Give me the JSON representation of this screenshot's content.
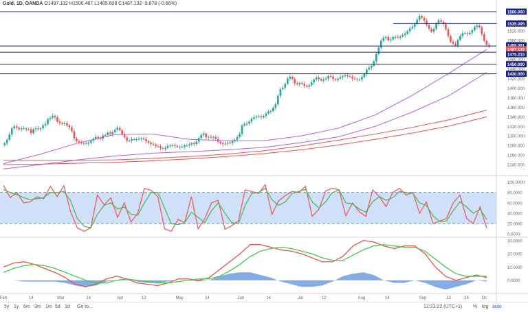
{
  "header": {
    "symbol": "Gold, 1D, OANDA",
    "open": "O1497.132",
    "high": "H1500.487",
    "low": "L1485.608",
    "close": "C1487.132",
    "change": "-9.878 (-0.66%)"
  },
  "colors": {
    "candle_up": "#26a69a",
    "candle_down": "#ef5350",
    "ma_purple": "#b05fe0",
    "ma_red": "#f04e4e",
    "hline": "#1a237e",
    "stoch_k": "#ef5350",
    "stoch_d": "#4caf50",
    "stoch_band": "#bcd3f5",
    "macd_hist": "#5b8fd9"
  },
  "toolbar": {
    "ranges": [
      "5y",
      "1y",
      "6m",
      "3m",
      "1m",
      "5d",
      "1d"
    ],
    "goto": "Go to...",
    "time": "12:23:22 (UTC+1)",
    "percent": "%",
    "log": "log",
    "auto": "auto"
  },
  "chart_data": [
    {
      "type": "candlestick",
      "title": "Gold, 1D, OANDA",
      "ylim": [
        1220,
        1570
      ],
      "y_ticks": [
        1240,
        1260,
        1280,
        1300,
        1320,
        1340,
        1360,
        1380,
        1400,
        1420,
        1440,
        1460,
        1480,
        1500,
        1520,
        1540
      ],
      "x_labels": [
        "Feb",
        "14",
        "Mar",
        "14",
        "Apr",
        "12",
        "May",
        "14",
        "Jun",
        "14",
        "Jul",
        "12",
        "Aug",
        "14",
        "Sep",
        "13",
        "26",
        "Oc"
      ],
      "x_label_days": [
        0,
        14,
        29,
        43,
        59,
        71,
        89,
        103,
        120,
        134,
        150,
        162,
        181,
        194,
        212,
        225,
        234,
        243
      ],
      "total_days": 246,
      "close": [
        1285,
        1292,
        1303,
        1316,
        1320,
        1317,
        1314,
        1316,
        1316,
        1314,
        1314,
        1306,
        1314,
        1316,
        1314,
        1316,
        1322,
        1325,
        1335,
        1338,
        1342,
        1339,
        1330,
        1327,
        1325,
        1327,
        1322,
        1318,
        1310,
        1295,
        1289,
        1287,
        1285,
        1285,
        1284,
        1286,
        1290,
        1294,
        1298,
        1296,
        1294,
        1301,
        1302,
        1307,
        1304,
        1308,
        1313,
        1317,
        1312,
        1304,
        1297,
        1290,
        1290,
        1293,
        1293,
        1293,
        1294,
        1295,
        1293,
        1289,
        1286,
        1283,
        1282,
        1279,
        1278,
        1274,
        1273,
        1275,
        1279,
        1280,
        1280,
        1279,
        1277,
        1277,
        1277,
        1280,
        1280,
        1282,
        1285,
        1283,
        1288,
        1296,
        1302,
        1305,
        1297,
        1298,
        1297,
        1298,
        1294,
        1288,
        1285,
        1283,
        1284,
        1286,
        1285,
        1289,
        1292,
        1298,
        1304,
        1322,
        1325,
        1326,
        1330,
        1336,
        1339,
        1341,
        1341,
        1339,
        1342,
        1347,
        1351,
        1352,
        1359,
        1366,
        1384,
        1398,
        1401,
        1409,
        1420,
        1424,
        1419,
        1410,
        1408,
        1411,
        1409,
        1405,
        1403,
        1406,
        1412,
        1418,
        1422,
        1419,
        1416,
        1418,
        1420,
        1425,
        1424,
        1419,
        1417,
        1420,
        1423,
        1425,
        1427,
        1425,
        1424,
        1420,
        1419,
        1418,
        1418,
        1423,
        1430,
        1439,
        1443,
        1447,
        1456,
        1471,
        1485,
        1499,
        1505,
        1507,
        1500,
        1502,
        1507,
        1507,
        1506,
        1508,
        1511,
        1514,
        1519,
        1525,
        1528,
        1534,
        1543,
        1551,
        1547,
        1541,
        1532,
        1524,
        1518,
        1524,
        1535,
        1542,
        1539,
        1534,
        1523,
        1509,
        1497,
        1493,
        1489,
        1501,
        1509,
        1515,
        1515,
        1513,
        1516,
        1521,
        1528,
        1531,
        1527,
        1513,
        1499,
        1491,
        1487
      ],
      "horizontal_levels": [
        1560.0,
        1535.095,
        1488.081,
        1475.215,
        1450.0,
        1430.0
      ],
      "price_labels": [
        "1560.000",
        "1535.095",
        "1488.081",
        "1487.132",
        "1475.215",
        "1450.000",
        "1430.000"
      ],
      "moving_averages": [
        {
          "color": "purple",
          "values": [
            1242,
            1262,
            1285,
            1303,
            1304,
            1293,
            1290,
            1290,
            1300,
            1316,
            1344,
            1385,
            1432,
            1481
          ]
        },
        {
          "color": "purple",
          "values": [
            1231,
            1240,
            1250,
            1258,
            1264,
            1267,
            1271,
            1276,
            1286,
            1298,
            1320,
            1350,
            1385,
            1433
          ]
        },
        {
          "color": "red",
          "values": [
            1249,
            1249,
            1249,
            1250,
            1253,
            1257,
            1262,
            1269,
            1279,
            1291,
            1304,
            1318,
            1334,
            1354
          ]
        },
        {
          "color": "red",
          "values": [
            1240,
            1241,
            1243,
            1245,
            1248,
            1252,
            1257,
            1263,
            1271,
            1281,
            1293,
            1306,
            1321,
            1340
          ]
        }
      ]
    },
    {
      "type": "line",
      "title": "",
      "ylim": [
        0,
        100
      ],
      "y_ticks": [
        0,
        20,
        40,
        60,
        80,
        100
      ],
      "band": [
        20,
        80
      ],
      "series": [
        {
          "values": [
            94,
            70,
            80,
            60,
            62,
            72,
            68,
            92,
            72,
            93,
            43,
            12,
            5,
            12,
            75,
            56,
            70,
            32,
            60,
            23,
            40,
            88,
            84,
            72,
            10,
            5,
            28,
            22,
            72,
            10,
            30,
            60,
            65,
            9,
            16,
            25,
            85,
            82,
            78,
            95,
            38,
            64,
            74,
            82,
            80,
            92,
            34,
            48,
            83,
            88,
            85,
            35,
            60,
            43,
            34,
            85,
            72,
            53,
            80,
            88,
            75,
            80,
            40,
            62,
            20,
            25,
            30,
            60,
            75,
            30,
            20,
            52,
            11
          ]
        },
        {
          "values": [
            86,
            80,
            76,
            70,
            66,
            68,
            70,
            80,
            80,
            82,
            64,
            30,
            15,
            12,
            38,
            55,
            60,
            48,
            52,
            38,
            36,
            60,
            80,
            80,
            50,
            20,
            18,
            22,
            42,
            32,
            22,
            45,
            60,
            40,
            22,
            20,
            55,
            78,
            80,
            88,
            66,
            55,
            62,
            78,
            82,
            86,
            62,
            50,
            62,
            80,
            85,
            60,
            58,
            48,
            42,
            62,
            72,
            65,
            70,
            82,
            80,
            78,
            60,
            55,
            35,
            24,
            25,
            45,
            62,
            52,
            40,
            48,
            28
          ]
        }
      ]
    },
    {
      "type": "line",
      "title": "",
      "ylim": [
        -10,
        32
      ],
      "y_ticks": [
        0,
        10,
        20,
        30
      ],
      "series": [
        {
          "values": [
            10,
            13,
            14,
            12,
            9,
            6,
            2,
            -3,
            -5,
            -3,
            1,
            3,
            1,
            -2,
            -3,
            -4,
            -2,
            1,
            1,
            0,
            2,
            8,
            14,
            20,
            27,
            27,
            25,
            23,
            22,
            20,
            17,
            14,
            14,
            18,
            26,
            30,
            29,
            26,
            24,
            26,
            26,
            20,
            10,
            3,
            0,
            2,
            4,
            2
          ]
        },
        {
          "values": [
            6,
            9,
            11,
            12,
            11,
            9,
            6,
            3,
            0,
            -2,
            -2,
            0,
            1,
            0,
            -1,
            -2,
            -2,
            -1,
            0,
            1,
            1,
            3,
            7,
            12,
            18,
            22,
            24,
            25,
            24,
            22,
            20,
            17,
            15,
            15,
            19,
            23,
            26,
            27,
            26,
            25,
            25,
            22,
            16,
            10,
            5,
            3,
            3,
            3
          ]
        },
        {
          "values": [
            0,
            0,
            -1,
            -1,
            -1,
            -1,
            -2,
            -4,
            -5,
            -4,
            -1,
            0,
            1,
            -1,
            -2,
            -2,
            -1,
            0,
            0,
            -1,
            0,
            3,
            5,
            6,
            6,
            4,
            2,
            -1,
            -3,
            -5,
            -5,
            -4,
            -1,
            3,
            5,
            6,
            4,
            0,
            -2,
            -2,
            0,
            -2,
            -5,
            -7,
            -5,
            -3,
            0,
            -1
          ]
        }
      ]
    }
  ]
}
